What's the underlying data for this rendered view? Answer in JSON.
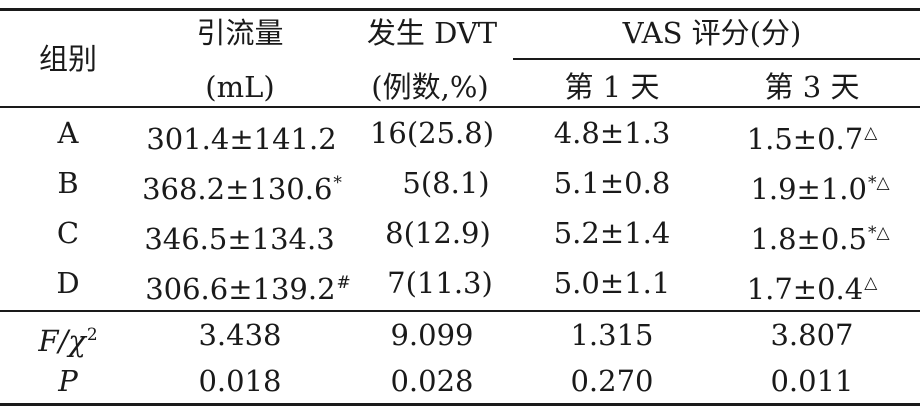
{
  "header": {
    "group": "组别",
    "drainage_line1": "引流量",
    "drainage_line2": "(mL)",
    "dvt_line1": "发生 DVT",
    "dvt_line2": "(例数,%)",
    "vas_title": "VAS 评分(分)",
    "day1": "第 1 天",
    "day3": "第 3 天"
  },
  "rows": [
    {
      "group": "A",
      "drainage": "301.4±141.2",
      "drainage_mark": "",
      "dvt": "16(25.8)",
      "day1": "4.8±1.3",
      "day3": "1.5±0.7",
      "day3_mark": "△"
    },
    {
      "group": "B",
      "drainage": "368.2±130.6",
      "drainage_mark": "*",
      "dvt": "5(8.1)",
      "day1": "5.1±0.8",
      "day3": "1.9±1.0",
      "day3_mark": "*△"
    },
    {
      "group": "C",
      "drainage": "346.5±134.3",
      "drainage_mark": "",
      "dvt": "8(12.9)",
      "day1": "5.2±1.4",
      "day3": "1.8±0.5",
      "day3_mark": "*△"
    },
    {
      "group": "D",
      "drainage": "306.6±139.2",
      "drainage_mark": "#",
      "dvt": "7(11.3)",
      "day1": "5.0±1.1",
      "day3": "1.7±0.4",
      "day3_mark": "△"
    }
  ],
  "stats": [
    {
      "label_main": "F/χ",
      "label_sup": "2",
      "drainage": "3.438",
      "dvt": "9.099",
      "day1": "1.315",
      "day3": "3.807"
    },
    {
      "label_main": "P",
      "label_sup": "",
      "drainage": "0.018",
      "dvt": "0.028",
      "day1": "0.270",
      "day3": "0.011"
    }
  ]
}
